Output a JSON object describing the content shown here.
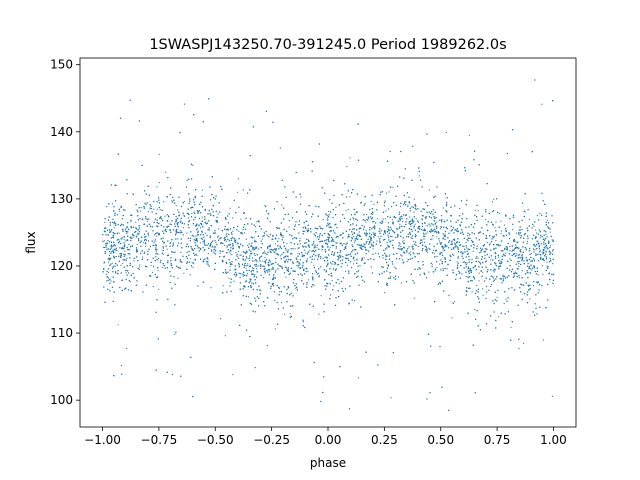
{
  "chart_data": {
    "type": "scatter",
    "title": "1SWASPJ143250.70-391245.0 Period 1989262.0s",
    "xlabel": "phase",
    "ylabel": "flux",
    "xlim": [
      -1.1,
      1.1
    ],
    "ylim": [
      96,
      151
    ],
    "grid": false,
    "x_ticks": [
      -1.0,
      -0.75,
      -0.5,
      -0.25,
      0.0,
      0.25,
      0.5,
      0.75,
      1.0
    ],
    "x_tick_labels": [
      "−1.00",
      "−0.75",
      "−0.50",
      "−0.25",
      "0.00",
      "0.25",
      "0.50",
      "0.75",
      "1.00"
    ],
    "y_ticks": [
      100,
      110,
      120,
      130,
      140,
      150
    ],
    "y_tick_labels": [
      "100",
      "110",
      "120",
      "130",
      "140",
      "150"
    ],
    "marker_color": "#1f77b4",
    "series": [
      {
        "x_range": [
          -1.0,
          1.0
        ],
        "phase_folded": true,
        "mean_flux_profile": {
          "phase": [
            -1.0,
            -0.75,
            -0.6,
            -0.5,
            -0.35,
            -0.25,
            0.0,
            0.25,
            0.4,
            0.5,
            0.65,
            0.75,
            1.0
          ],
          "flux": [
            122,
            125,
            125.5,
            124,
            121,
            121,
            122,
            125,
            125.5,
            124,
            121,
            121,
            122
          ]
        },
        "core_band_flux": [
          113,
          133
        ],
        "outlier_flux_range": [
          98,
          148
        ]
      }
    ]
  }
}
